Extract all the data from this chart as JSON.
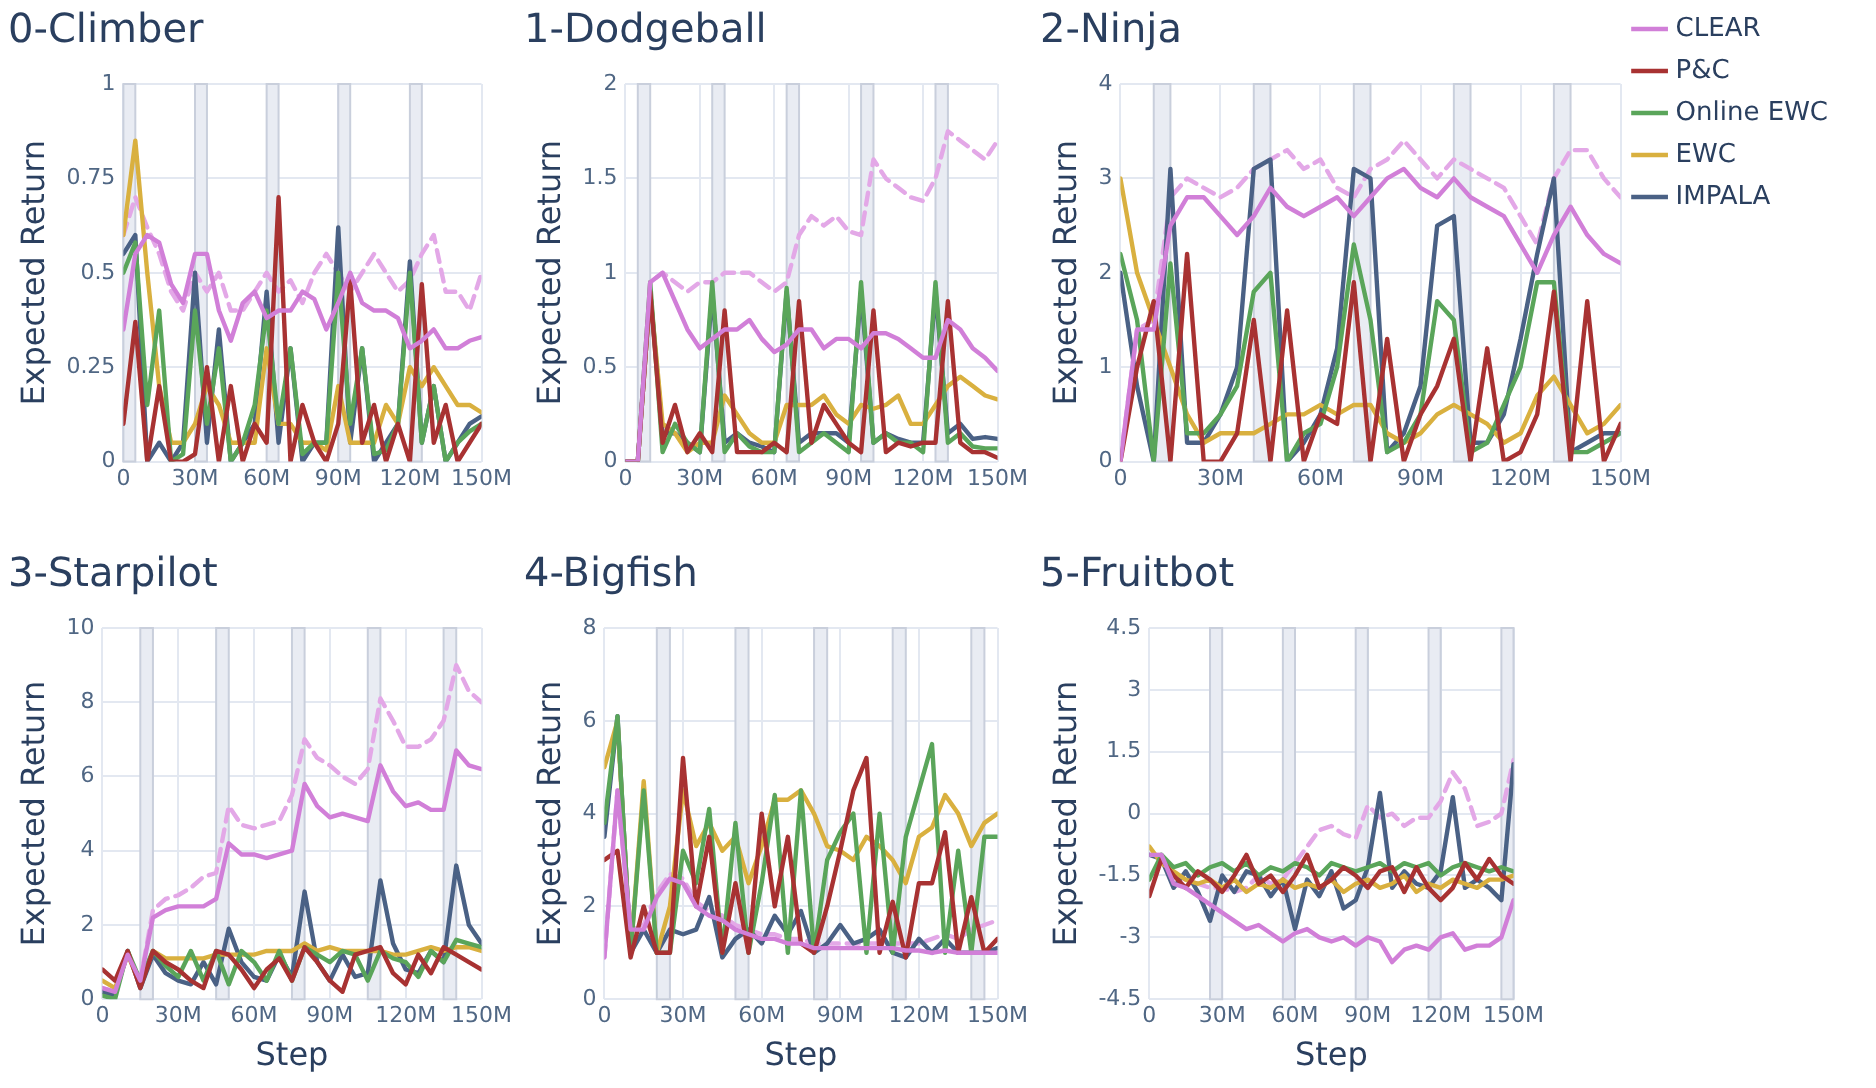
{
  "chart_data": [
    {
      "type": "line",
      "title": "0-Climber",
      "ylabel": "Expected Return",
      "grid": true,
      "legend": false,
      "marker": "none",
      "x": [
        0,
        5000000,
        10000000,
        15000000,
        20000000,
        25000000,
        30000000,
        35000000,
        40000000,
        45000000,
        50000000,
        55000000,
        60000000,
        65000000,
        70000000,
        75000000,
        80000000,
        85000000,
        90000000,
        95000000,
        100000000,
        105000000,
        110000000,
        115000000,
        120000000,
        125000000,
        130000000,
        135000000,
        140000000,
        145000000,
        150000000
      ],
      "xlim": [
        0,
        150000000
      ],
      "xticks": [
        {
          "value": 0,
          "label": "0"
        },
        {
          "value": 30000000,
          "label": "30M"
        },
        {
          "value": 60000000,
          "label": "60M"
        },
        {
          "value": 90000000,
          "label": "90M"
        },
        {
          "value": 120000000,
          "label": "120M"
        },
        {
          "value": 150000000,
          "label": "150M"
        }
      ],
      "ylim": [
        0,
        1
      ],
      "yticks": [
        0,
        0.25,
        0.5,
        0.75,
        1
      ],
      "bands": [
        {
          "axis": "x",
          "from": 0,
          "to": 5000000,
          "color": "#e9ecf3"
        },
        {
          "axis": "x",
          "from": 30000000,
          "to": 35000000,
          "color": "#e9ecf3"
        },
        {
          "axis": "x",
          "from": 60000000,
          "to": 65000000,
          "color": "#e9ecf3"
        },
        {
          "axis": "x",
          "from": 90000000,
          "to": 95000000,
          "color": "#e9ecf3"
        },
        {
          "axis": "x",
          "from": 120000000,
          "to": 125000000,
          "color": "#e9ecf3"
        }
      ],
      "series": [
        {
          "color": "#d17fd8",
          "values": [
            0.35,
            0.55,
            0.6,
            0.58,
            0.47,
            0.42,
            0.55,
            0.55,
            0.4,
            0.32,
            0.42,
            0.45,
            0.38,
            0.4,
            0.4,
            0.45,
            0.43,
            0.35,
            0.42,
            0.5,
            0.42,
            0.4,
            0.4,
            0.38,
            0.3,
            0.32,
            0.35,
            0.3,
            0.3,
            0.32,
            0.33
          ]
        },
        {
          "color": "#a83232",
          "values": [
            0.1,
            0.37,
            0,
            0.2,
            0,
            0,
            0.02,
            0.25,
            0,
            0.2,
            0,
            0.1,
            0.05,
            0.7,
            0,
            0.15,
            0.05,
            0,
            0.1,
            0.48,
            0.05,
            0.15,
            0,
            0.1,
            0,
            0.47,
            0.05,
            0.15,
            0,
            0.05,
            0.1
          ]
        },
        {
          "color": "#5aa55a",
          "values": [
            0.5,
            0.58,
            0.15,
            0.4,
            0,
            0.02,
            0.4,
            0.1,
            0.3,
            0,
            0.05,
            0.15,
            0.4,
            0.1,
            0.3,
            0.02,
            0.05,
            0.05,
            0.5,
            0.1,
            0.3,
            0.02,
            0.03,
            0.1,
            0.5,
            0.05,
            0.2,
            0,
            0.05,
            0.08,
            0.1
          ]
        },
        {
          "color": "#d9b03f",
          "values": [
            0.6,
            0.85,
            0.5,
            0.2,
            0.05,
            0.05,
            0.1,
            0.2,
            0.15,
            0.05,
            0.05,
            0.05,
            0.3,
            0.1,
            0.1,
            0.05,
            0.05,
            0.03,
            0.2,
            0.05,
            0.05,
            0.05,
            0.15,
            0.1,
            0.25,
            0.2,
            0.25,
            0.2,
            0.15,
            0.15,
            0.13
          ]
        },
        {
          "color": "#4a6185",
          "values": [
            0.55,
            0.6,
            0,
            0.05,
            0,
            0.05,
            0.5,
            0.05,
            0.35,
            0,
            0.05,
            0.1,
            0.45,
            0.05,
            0.3,
            0,
            0.05,
            0.05,
            0.62,
            0.05,
            0.3,
            0,
            0.05,
            0.1,
            0.53,
            0.05,
            0.2,
            0,
            0.05,
            0.1,
            0.12
          ]
        },
        {
          "color": "#e3a8e7",
          "line_style": "dashed",
          "values": [
            0.6,
            0.7,
            0.62,
            0.55,
            0.45,
            0.4,
            0.5,
            0.45,
            0.5,
            0.4,
            0.4,
            0.45,
            0.5,
            0.45,
            0.48,
            0.42,
            0.5,
            0.55,
            0.5,
            0.45,
            0.5,
            0.55,
            0.5,
            0.45,
            0.48,
            0.55,
            0.6,
            0.45,
            0.45,
            0.4,
            0.5
          ]
        }
      ]
    },
    {
      "type": "line",
      "title": "1-Dodgeball",
      "ylabel": "Expected Return",
      "grid": true,
      "legend": false,
      "marker": "none",
      "x": [
        0,
        5000000,
        10000000,
        15000000,
        20000000,
        25000000,
        30000000,
        35000000,
        40000000,
        45000000,
        50000000,
        55000000,
        60000000,
        65000000,
        70000000,
        75000000,
        80000000,
        85000000,
        90000000,
        95000000,
        100000000,
        105000000,
        110000000,
        115000000,
        120000000,
        125000000,
        130000000,
        135000000,
        140000000,
        145000000,
        150000000
      ],
      "xlim": [
        0,
        150000000
      ],
      "xticks": [
        {
          "value": 0,
          "label": "0"
        },
        {
          "value": 30000000,
          "label": "30M"
        },
        {
          "value": 60000000,
          "label": "60M"
        },
        {
          "value": 90000000,
          "label": "90M"
        },
        {
          "value": 120000000,
          "label": "120M"
        },
        {
          "value": 150000000,
          "label": "150M"
        }
      ],
      "ylim": [
        0,
        2
      ],
      "yticks": [
        0,
        0.5,
        1,
        1.5,
        2
      ],
      "bands": [
        {
          "axis": "x",
          "from": 5000000,
          "to": 10000000,
          "color": "#e9ecf3"
        },
        {
          "axis": "x",
          "from": 35000000,
          "to": 40000000,
          "color": "#e9ecf3"
        },
        {
          "axis": "x",
          "from": 65000000,
          "to": 70000000,
          "color": "#e9ecf3"
        },
        {
          "axis": "x",
          "from": 95000000,
          "to": 100000000,
          "color": "#e9ecf3"
        },
        {
          "axis": "x",
          "from": 125000000,
          "to": 130000000,
          "color": "#e9ecf3"
        }
      ],
      "series": [
        {
          "color": "#d17fd8",
          "values": [
            0,
            0,
            0.95,
            1,
            0.85,
            0.7,
            0.6,
            0.65,
            0.7,
            0.7,
            0.75,
            0.65,
            0.58,
            0.62,
            0.7,
            0.7,
            0.6,
            0.65,
            0.65,
            0.6,
            0.68,
            0.68,
            0.65,
            0.6,
            0.55,
            0.55,
            0.75,
            0.7,
            0.6,
            0.55,
            0.48
          ]
        },
        {
          "color": "#a83232",
          "values": [
            0,
            0,
            0.9,
            0.1,
            0.3,
            0.05,
            0.15,
            0.05,
            0.8,
            0.05,
            0.05,
            0.05,
            0.1,
            0.05,
            0.85,
            0.1,
            0.3,
            0.2,
            0.1,
            0.05,
            0.8,
            0.05,
            0.1,
            0.08,
            0.1,
            0.1,
            0.85,
            0.1,
            0.05,
            0.05,
            0.02
          ]
        },
        {
          "color": "#5aa55a",
          "values": [
            0,
            0,
            0.95,
            0.05,
            0.2,
            0.1,
            0.05,
            0.95,
            0.05,
            0.15,
            0.08,
            0.05,
            0.05,
            0.92,
            0.05,
            0.1,
            0.15,
            0.1,
            0.05,
            0.95,
            0.1,
            0.15,
            0.1,
            0.1,
            0.05,
            0.95,
            0.1,
            0.15,
            0.08,
            0.07,
            0.07
          ]
        },
        {
          "color": "#d9b03f",
          "values": [
            0,
            0,
            0.9,
            0.2,
            0.15,
            0.05,
            0.1,
            0.1,
            0.35,
            0.25,
            0.15,
            0.1,
            0.1,
            0.3,
            0.3,
            0.3,
            0.35,
            0.25,
            0.2,
            0.3,
            0.28,
            0.3,
            0.35,
            0.2,
            0.2,
            0.3,
            0.4,
            0.45,
            0.4,
            0.35,
            0.33
          ]
        },
        {
          "color": "#4a6185",
          "values": [
            0,
            0,
            0.9,
            0.15,
            0.15,
            0.1,
            0.05,
            0.9,
            0.1,
            0.15,
            0.1,
            0.08,
            0.05,
            0.9,
            0.1,
            0.15,
            0.15,
            0.15,
            0.1,
            0.9,
            0.1,
            0.15,
            0.12,
            0.1,
            0.1,
            0.9,
            0.15,
            0.2,
            0.12,
            0.13,
            0.12
          ]
        },
        {
          "color": "#e3a8e7",
          "line_style": "dashed",
          "values": [
            0,
            0,
            0.95,
            1,
            0.95,
            0.9,
            0.95,
            0.95,
            1,
            1,
            1,
            0.95,
            0.9,
            0.95,
            1.2,
            1.3,
            1.25,
            1.3,
            1.22,
            1.2,
            1.6,
            1.5,
            1.45,
            1.4,
            1.38,
            1.5,
            1.75,
            1.7,
            1.65,
            1.6,
            1.7
          ]
        }
      ]
    },
    {
      "type": "line",
      "title": "2-Ninja",
      "ylabel": "Expected Return",
      "grid": true,
      "legend": "right",
      "marker": "none",
      "x": [
        0,
        5000000,
        10000000,
        15000000,
        20000000,
        25000000,
        30000000,
        35000000,
        40000000,
        45000000,
        50000000,
        55000000,
        60000000,
        65000000,
        70000000,
        75000000,
        80000000,
        85000000,
        90000000,
        95000000,
        100000000,
        105000000,
        110000000,
        115000000,
        120000000,
        125000000,
        130000000,
        135000000,
        140000000,
        145000000,
        150000000
      ],
      "xlim": [
        0,
        150000000
      ],
      "xticks": [
        {
          "value": 0,
          "label": "0"
        },
        {
          "value": 30000000,
          "label": "30M"
        },
        {
          "value": 60000000,
          "label": "60M"
        },
        {
          "value": 90000000,
          "label": "90M"
        },
        {
          "value": 120000000,
          "label": "120M"
        },
        {
          "value": 150000000,
          "label": "150M"
        }
      ],
      "ylim": [
        0,
        4
      ],
      "yticks": [
        0,
        1,
        2,
        3,
        4
      ],
      "bands": [
        {
          "axis": "x",
          "from": 10000000,
          "to": 15000000,
          "color": "#e9ecf3"
        },
        {
          "axis": "x",
          "from": 40000000,
          "to": 45000000,
          "color": "#e9ecf3"
        },
        {
          "axis": "x",
          "from": 70000000,
          "to": 75000000,
          "color": "#e9ecf3"
        },
        {
          "axis": "x",
          "from": 100000000,
          "to": 105000000,
          "color": "#e9ecf3"
        },
        {
          "axis": "x",
          "from": 130000000,
          "to": 135000000,
          "color": "#e9ecf3"
        }
      ],
      "series": [
        {
          "name": "CLEAR",
          "color": "#d17fd8",
          "values": [
            0,
            1.4,
            1.4,
            2.5,
            2.8,
            2.8,
            2.6,
            2.4,
            2.6,
            2.9,
            2.7,
            2.6,
            2.7,
            2.8,
            2.6,
            2.8,
            3,
            3.1,
            2.9,
            2.8,
            3,
            2.8,
            2.7,
            2.6,
            2.3,
            2,
            2.4,
            2.7,
            2.4,
            2.2,
            2.1
          ]
        },
        {
          "name": "P&C",
          "color": "#a83232",
          "values": [
            0,
            1,
            1.7,
            0,
            2.2,
            0,
            0,
            0.3,
            1.5,
            0,
            1.6,
            0,
            0.5,
            0.4,
            1.9,
            0,
            1.3,
            0,
            0.5,
            0.8,
            1.3,
            0,
            1.2,
            0,
            0.1,
            0.5,
            1.8,
            0,
            1.7,
            0,
            0.4
          ]
        },
        {
          "name": "Online EWC",
          "color": "#5aa55a",
          "values": [
            2.2,
            1.5,
            0,
            2.1,
            0.3,
            0.3,
            0.5,
            0.8,
            1.8,
            2,
            0,
            0.3,
            0.4,
            1,
            2.3,
            1.5,
            0.1,
            0.2,
            0.5,
            1.7,
            1.5,
            0.1,
            0.2,
            0.6,
            1,
            1.9,
            1.9,
            0.1,
            0.1,
            0.2,
            0.3
          ]
        },
        {
          "name": "EWC",
          "color": "#d9b03f",
          "values": [
            3,
            2,
            1.5,
            1,
            0.5,
            0.2,
            0.3,
            0.3,
            0.3,
            0.4,
            0.5,
            0.5,
            0.6,
            0.5,
            0.6,
            0.6,
            0.3,
            0.2,
            0.3,
            0.5,
            0.6,
            0.5,
            0.4,
            0.2,
            0.3,
            0.7,
            0.9,
            0.6,
            0.3,
            0.4,
            0.6
          ]
        },
        {
          "name": "IMPALA",
          "color": "#4a6185",
          "values": [
            2,
            0.8,
            0,
            3.1,
            0.2,
            0.2,
            0.5,
            1,
            3.1,
            3.2,
            0,
            0.2,
            0.5,
            1.2,
            3.1,
            3,
            0.1,
            0.3,
            0.8,
            2.5,
            2.6,
            0.2,
            0.2,
            0.5,
            1.3,
            2.2,
            3,
            0.1,
            0.2,
            0.3,
            0.3
          ]
        },
        {
          "color": "#e3a8e7",
          "line_style": "dashed",
          "values": [
            0,
            1.4,
            1.5,
            2.8,
            3,
            2.9,
            2.8,
            2.9,
            3.1,
            3.2,
            3.3,
            3.1,
            3.2,
            2.9,
            2.8,
            3.1,
            3.2,
            3.4,
            3.2,
            3,
            3.2,
            3.1,
            3,
            2.9,
            2.6,
            2.3,
            3,
            3.3,
            3.3,
            3,
            2.8
          ]
        }
      ]
    },
    {
      "type": "line",
      "title": "3-Starpilot",
      "xlabel": "Step",
      "ylabel": "Expected Return",
      "grid": true,
      "legend": false,
      "marker": "none",
      "x": [
        0,
        5000000,
        10000000,
        15000000,
        20000000,
        25000000,
        30000000,
        35000000,
        40000000,
        45000000,
        50000000,
        55000000,
        60000000,
        65000000,
        70000000,
        75000000,
        80000000,
        85000000,
        90000000,
        95000000,
        100000000,
        105000000,
        110000000,
        115000000,
        120000000,
        125000000,
        130000000,
        135000000,
        140000000,
        145000000,
        150000000
      ],
      "xlim": [
        0,
        150000000
      ],
      "xticks": [
        {
          "value": 0,
          "label": "0"
        },
        {
          "value": 30000000,
          "label": "30M"
        },
        {
          "value": 60000000,
          "label": "60M"
        },
        {
          "value": 90000000,
          "label": "90M"
        },
        {
          "value": 120000000,
          "label": "120M"
        },
        {
          "value": 150000000,
          "label": "150M"
        }
      ],
      "ylim": [
        0,
        10
      ],
      "yticks": [
        0,
        2,
        4,
        6,
        8,
        10
      ],
      "bands": [
        {
          "axis": "x",
          "from": 15000000,
          "to": 20000000,
          "color": "#e9ecf3"
        },
        {
          "axis": "x",
          "from": 45000000,
          "to": 50000000,
          "color": "#e9ecf3"
        },
        {
          "axis": "x",
          "from": 75000000,
          "to": 80000000,
          "color": "#e9ecf3"
        },
        {
          "axis": "x",
          "from": 105000000,
          "to": 110000000,
          "color": "#e9ecf3"
        },
        {
          "axis": "x",
          "from": 135000000,
          "to": 140000000,
          "color": "#e9ecf3"
        }
      ],
      "series": [
        {
          "color": "#d17fd8",
          "values": [
            0.3,
            0.2,
            1.2,
            0.5,
            2.2,
            2.4,
            2.5,
            2.5,
            2.5,
            2.7,
            4.2,
            3.9,
            3.9,
            3.8,
            3.9,
            4,
            5.8,
            5.2,
            4.9,
            5,
            4.9,
            4.8,
            6.3,
            5.6,
            5.2,
            5.3,
            5.1,
            5.1,
            6.7,
            6.3,
            6.2
          ]
        },
        {
          "color": "#a83232",
          "values": [
            0.8,
            0.5,
            1.3,
            0.3,
            1.3,
            1,
            0.8,
            0.5,
            0.3,
            1.3,
            1.2,
            0.8,
            0.3,
            0.8,
            1.1,
            0.5,
            1.4,
            1,
            0.5,
            0.2,
            1.2,
            1.3,
            1.4,
            0.7,
            0.4,
            1.2,
            0.7,
            1.4,
            1.2,
            1,
            0.8
          ]
        },
        {
          "color": "#5aa55a",
          "values": [
            0.1,
            0,
            1.3,
            0.5,
            1.3,
            0.9,
            0.6,
            1.3,
            0.5,
            1.3,
            0.4,
            1.3,
            1,
            0.5,
            1.3,
            0.5,
            1.4,
            1.2,
            1,
            1.3,
            1.2,
            0.5,
            1.3,
            1.1,
            1,
            0.6,
            1.3,
            1,
            1.6,
            1.5,
            1.4
          ]
        },
        {
          "color": "#d9b03f",
          "values": [
            0.5,
            0.3,
            1.2,
            0.4,
            1.3,
            1.1,
            1.1,
            1.1,
            1.1,
            1.2,
            1.2,
            1.2,
            1.2,
            1.3,
            1.3,
            1.3,
            1.5,
            1.3,
            1.4,
            1.3,
            1.3,
            1.3,
            1.3,
            1.2,
            1.2,
            1.3,
            1.4,
            1.3,
            1.4,
            1.4,
            1.3
          ]
        },
        {
          "color": "#4a6185",
          "values": [
            0.2,
            0.1,
            1.3,
            0.3,
            1.2,
            0.7,
            0.5,
            0.4,
            1,
            0.4,
            1.9,
            1,
            0.6,
            0.5,
            1.2,
            0.6,
            2.9,
            1,
            0.5,
            1.2,
            0.6,
            0.7,
            3.2,
            1.5,
            0.8,
            0.7,
            1.3,
            1,
            3.6,
            2,
            1.5
          ]
        },
        {
          "color": "#e3a8e7",
          "line_style": "dashed",
          "values": [
            0.3,
            0.2,
            1.2,
            0.5,
            2.4,
            2.7,
            2.8,
            3,
            3.3,
            3.4,
            5.2,
            4.7,
            4.6,
            4.7,
            4.8,
            5.5,
            7,
            6.5,
            6.3,
            6,
            5.8,
            6.2,
            8.1,
            7.5,
            6.8,
            6.8,
            7,
            7.5,
            9,
            8.3,
            8
          ]
        }
      ]
    },
    {
      "type": "line",
      "title": "4-Bigfish",
      "xlabel": "Step",
      "ylabel": "Expected Return",
      "grid": true,
      "legend": false,
      "marker": "none",
      "x": [
        0,
        5000000,
        10000000,
        15000000,
        20000000,
        25000000,
        30000000,
        35000000,
        40000000,
        45000000,
        50000000,
        55000000,
        60000000,
        65000000,
        70000000,
        75000000,
        80000000,
        85000000,
        90000000,
        95000000,
        100000000,
        105000000,
        110000000,
        115000000,
        120000000,
        125000000,
        130000000,
        135000000,
        140000000,
        145000000,
        150000000
      ],
      "xlim": [
        0,
        150000000
      ],
      "xticks": [
        {
          "value": 0,
          "label": "0"
        },
        {
          "value": 30000000,
          "label": "30M"
        },
        {
          "value": 60000000,
          "label": "60M"
        },
        {
          "value": 90000000,
          "label": "90M"
        },
        {
          "value": 120000000,
          "label": "120M"
        },
        {
          "value": 150000000,
          "label": "150M"
        }
      ],
      "ylim": [
        0,
        8
      ],
      "yticks": [
        0,
        2,
        4,
        6,
        8
      ],
      "bands": [
        {
          "axis": "x",
          "from": 20000000,
          "to": 25000000,
          "color": "#e9ecf3"
        },
        {
          "axis": "x",
          "from": 50000000,
          "to": 55000000,
          "color": "#e9ecf3"
        },
        {
          "axis": "x",
          "from": 80000000,
          "to": 85000000,
          "color": "#e9ecf3"
        },
        {
          "axis": "x",
          "from": 110000000,
          "to": 115000000,
          "color": "#e9ecf3"
        },
        {
          "axis": "x",
          "from": 140000000,
          "to": 145000000,
          "color": "#e9ecf3"
        }
      ],
      "series": [
        {
          "color": "#d17fd8",
          "values": [
            0.9,
            4.5,
            1.5,
            1.5,
            2.2,
            2.6,
            2.5,
            2,
            1.8,
            1.7,
            1.5,
            1.4,
            1.3,
            1.3,
            1.2,
            1.2,
            1.1,
            1.1,
            1.1,
            1.1,
            1.1,
            1.1,
            1.1,
            1.05,
            1.05,
            1,
            1.05,
            1,
            1,
            1,
            1
          ]
        },
        {
          "color": "#a83232",
          "values": [
            3,
            3.2,
            0.9,
            2,
            1,
            1,
            5.2,
            2,
            3.5,
            1,
            2.5,
            1,
            4,
            2,
            3.5,
            1.2,
            1,
            2,
            3.2,
            4.5,
            5.2,
            1,
            2.1,
            0.9,
            2.5,
            2.5,
            3.6,
            1,
            2.2,
            1,
            1.3
          ]
        },
        {
          "color": "#5aa55a",
          "values": [
            3.8,
            6.1,
            1,
            4.5,
            1,
            1,
            3.2,
            2.5,
            4.1,
            1,
            3.8,
            1,
            2.5,
            4.4,
            1,
            4.5,
            1,
            3,
            3.6,
            4,
            1,
            4,
            1,
            3.5,
            4.5,
            5.5,
            1,
            3.2,
            1,
            3.5,
            3.5
          ]
        },
        {
          "color": "#d9b03f",
          "values": [
            5,
            6,
            1,
            4.7,
            1,
            2,
            4.5,
            3.3,
            3.8,
            3.2,
            3.5,
            2.5,
            3.3,
            4.3,
            4.3,
            4.5,
            4,
            3.3,
            3.2,
            3,
            3.5,
            3.3,
            3,
            2.5,
            3.5,
            3.7,
            4.4,
            4,
            3.3,
            3.8,
            4
          ]
        },
        {
          "color": "#4a6185",
          "values": [
            3.5,
            6.1,
            1,
            1.5,
            1,
            1.5,
            1.4,
            1.5,
            2.2,
            0.9,
            1.3,
            1.5,
            1.2,
            1.8,
            1.4,
            1.9,
            1,
            1.2,
            1.6,
            1.2,
            1.3,
            1.5,
            1,
            0.9,
            1.3,
            1,
            1.3,
            1,
            1,
            1,
            1.1
          ]
        },
        {
          "color": "#e3a8e7",
          "line_style": "dashed",
          "values": [
            0.9,
            4.5,
            1.5,
            1.6,
            2.3,
            2.7,
            2.6,
            2.1,
            1.9,
            1.8,
            1.6,
            1.5,
            1.4,
            1.4,
            1.3,
            1.3,
            1.2,
            1.2,
            1.2,
            1.2,
            1.2,
            1.2,
            1.2,
            1.2,
            1.2,
            1.3,
            1.4,
            1.3,
            1.5,
            1.6,
            1.7
          ]
        }
      ]
    },
    {
      "type": "line",
      "title": "5-Fruitbot",
      "xlabel": "Step",
      "ylabel": "Expected Return",
      "grid": true,
      "legend": false,
      "marker": "none",
      "x": [
        0,
        5000000,
        10000000,
        15000000,
        20000000,
        25000000,
        30000000,
        35000000,
        40000000,
        45000000,
        50000000,
        55000000,
        60000000,
        65000000,
        70000000,
        75000000,
        80000000,
        85000000,
        90000000,
        95000000,
        100000000,
        105000000,
        110000000,
        115000000,
        120000000,
        125000000,
        130000000,
        135000000,
        140000000,
        145000000,
        150000000
      ],
      "xlim": [
        0,
        150000000
      ],
      "xticks": [
        {
          "value": 0,
          "label": "0"
        },
        {
          "value": 30000000,
          "label": "30M"
        },
        {
          "value": 60000000,
          "label": "60M"
        },
        {
          "value": 90000000,
          "label": "90M"
        },
        {
          "value": 120000000,
          "label": "120M"
        },
        {
          "value": 150000000,
          "label": "150M"
        }
      ],
      "ylim": [
        -4.5,
        4.5
      ],
      "yticks": [
        -4.5,
        -3,
        -1.5,
        0,
        1.5,
        3,
        4.5
      ],
      "bands": [
        {
          "axis": "x",
          "from": 25000000,
          "to": 30000000,
          "color": "#e9ecf3"
        },
        {
          "axis": "x",
          "from": 55000000,
          "to": 60000000,
          "color": "#e9ecf3"
        },
        {
          "axis": "x",
          "from": 85000000,
          "to": 90000000,
          "color": "#e9ecf3"
        },
        {
          "axis": "x",
          "from": 115000000,
          "to": 120000000,
          "color": "#e9ecf3"
        },
        {
          "axis": "x",
          "from": 145000000,
          "to": 150000000,
          "color": "#e9ecf3"
        }
      ],
      "series": [
        {
          "color": "#d17fd8",
          "values": [
            -1,
            -1,
            -1.7,
            -1.8,
            -2,
            -2.2,
            -2.4,
            -2.6,
            -2.8,
            -2.7,
            -2.9,
            -3.1,
            -2.9,
            -2.8,
            -3,
            -3.1,
            -3,
            -3.2,
            -3,
            -3.1,
            -3.6,
            -3.3,
            -3.2,
            -3.3,
            -3,
            -2.9,
            -3.3,
            -3.2,
            -3.2,
            -3,
            -2.1
          ]
        },
        {
          "color": "#a83232",
          "values": [
            -2,
            -1.1,
            -1.5,
            -1.8,
            -1.4,
            -1.6,
            -1.9,
            -1.5,
            -1,
            -1.7,
            -1.5,
            -1.9,
            -1.5,
            -1,
            -1.8,
            -1.6,
            -1.3,
            -1.5,
            -1.8,
            -1.4,
            -1.3,
            -1.9,
            -1.3,
            -1.8,
            -2.1,
            -1.8,
            -1.2,
            -1.6,
            -1.1,
            -1.5,
            -1.7
          ]
        },
        {
          "color": "#5aa55a",
          "values": [
            -1.6,
            -1,
            -1.3,
            -1.2,
            -1.5,
            -1.3,
            -1.2,
            -1.4,
            -1.2,
            -1.5,
            -1.3,
            -1.4,
            -1.2,
            -1.3,
            -1.5,
            -1.2,
            -1.3,
            -1.4,
            -1.3,
            -1.2,
            -1.4,
            -1.2,
            -1.3,
            -1.2,
            -1.5,
            -1.3,
            -1.2,
            -1.3,
            -1.4,
            -1.3,
            -1.4
          ]
        },
        {
          "color": "#d9b03f",
          "values": [
            -0.8,
            -1.2,
            -1.4,
            -1.6,
            -1.7,
            -1.6,
            -1.8,
            -1.6,
            -1.9,
            -1.7,
            -1.8,
            -1.6,
            -1.8,
            -1.7,
            -1.8,
            -1.6,
            -1.9,
            -1.7,
            -1.6,
            -1.8,
            -1.7,
            -1.5,
            -1.9,
            -1.7,
            -1.8,
            -1.6,
            -1.7,
            -1.8,
            -1.6,
            -1.6,
            -1.5
          ]
        },
        {
          "color": "#4a6185",
          "values": [
            -1,
            -1.1,
            -1.8,
            -1.4,
            -1.9,
            -2.6,
            -1.5,
            -1.9,
            -1.4,
            -1.5,
            -2,
            -1.6,
            -2.8,
            -1.6,
            -2,
            -1.4,
            -2.3,
            -2.1,
            -1.3,
            0.5,
            -1.8,
            -1.4,
            -1.7,
            -1.8,
            -1.4,
            0.4,
            -1.8,
            -1.6,
            -1.8,
            -2.1,
            1.2
          ]
        },
        {
          "color": "#e3a8e7",
          "line_style": "dashed",
          "values": [
            -1,
            -1,
            -1.5,
            -1.6,
            -1.7,
            -1.8,
            -1.8,
            -1.9,
            -1.8,
            -1.5,
            -1.7,
            -1.6,
            -1.2,
            -0.8,
            -0.4,
            -0.3,
            -0.5,
            -0.6,
            0.2,
            -0.1,
            0,
            -0.3,
            -0.1,
            -0.1,
            0.3,
            1,
            0.6,
            -0.3,
            -0.2,
            0,
            1.3
          ]
        }
      ]
    }
  ]
}
